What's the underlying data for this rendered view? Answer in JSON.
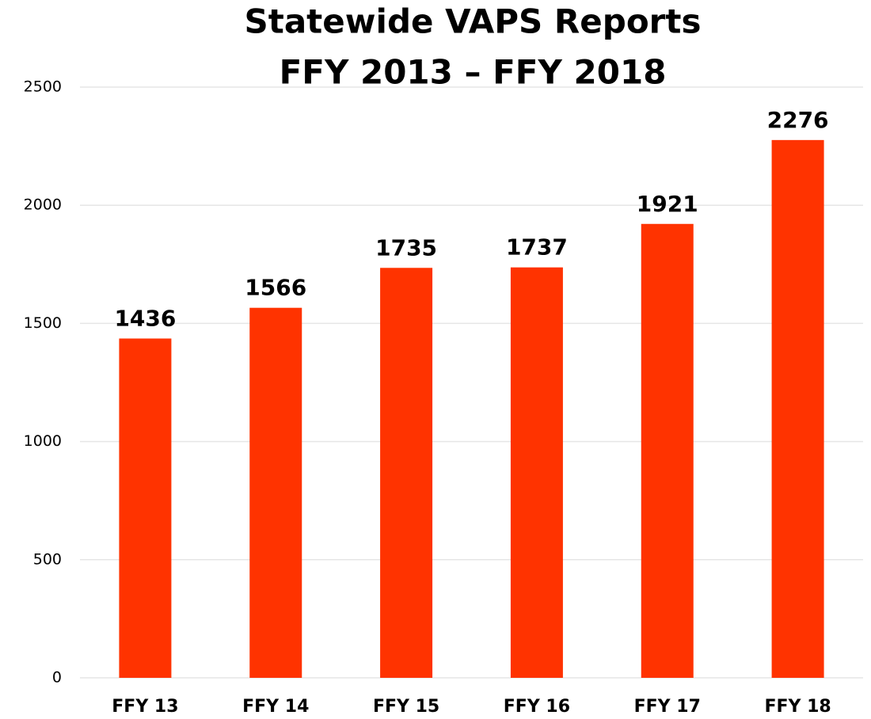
{
  "chart_data": {
    "type": "bar",
    "title": [
      "Statewide VAPS Reports",
      "FFY 2013 – FFY 2018"
    ],
    "categories": [
      "FFY 13",
      "FFY 14",
      "FFY 15",
      "FFY 16",
      "FFY 17",
      "FFY 18"
    ],
    "values": [
      1436,
      1566,
      1735,
      1737,
      1921,
      2276
    ],
    "color": "#ff3300",
    "ylim": [
      0,
      2500
    ],
    "yticks": [
      0,
      500,
      1000,
      1500,
      2000,
      2500
    ],
    "grid": true
  }
}
